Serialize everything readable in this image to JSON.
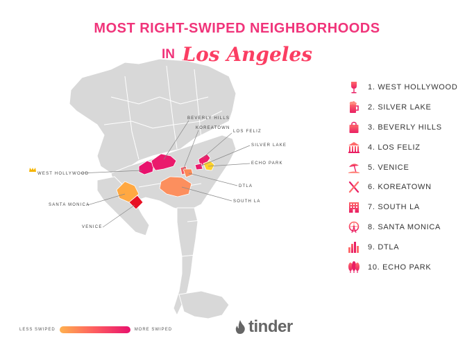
{
  "title": {
    "line1": "MOST RIGHT-SWIPED NEIGHBORHOODS",
    "line2_prefix": "IN",
    "line2_city": "Los Angeles"
  },
  "map_labels": {
    "west_hollywood": "WEST HOLLYWOOD",
    "beverly_hills": "BEVERLY HILLS",
    "koreatown": "KOREATOWN",
    "los_feliz": "LOS FELIZ",
    "silver_lake": "SILVER LAKE",
    "echo_park": "ECHO PARK",
    "dtla": "DTLA",
    "south_la": "SOUTH LA",
    "santa_monica": "SANTA MONICA",
    "venice": "VENICE"
  },
  "rankings": [
    {
      "label": "1. WEST HOLLYWOOD",
      "icon": "wine-glass-icon"
    },
    {
      "label": "2. SILVER LAKE",
      "icon": "beer-mug-icon"
    },
    {
      "label": "3. BEVERLY HILLS",
      "icon": "shopping-bag-icon"
    },
    {
      "label": "4. LOS FELIZ",
      "icon": "observatory-icon"
    },
    {
      "label": "5. VENICE",
      "icon": "beach-umbrella-icon"
    },
    {
      "label": "6. KOREATOWN",
      "icon": "fork-knife-icon"
    },
    {
      "label": "7. SOUTH LA",
      "icon": "building-icon"
    },
    {
      "label": "8. SANTA MONICA",
      "icon": "ferris-wheel-icon"
    },
    {
      "label": "9. DTLA",
      "icon": "skyline-icon"
    },
    {
      "label": "10. ECHO PARK",
      "icon": "trees-icon"
    }
  ],
  "legend": {
    "low": "LESS SWIPED",
    "high": "MORE SWIPED",
    "low_color": "#ffb14e",
    "high_color": "#e8126d"
  },
  "brand": {
    "name": "tinder",
    "icon": "flame-icon"
  },
  "colors": {
    "title": "#f0347a",
    "city": "#fb3e63",
    "map_base": "#d8d8d8",
    "map_border": "#ffffff",
    "icon_gradient_top": "#ff6b6b",
    "icon_gradient_bottom": "#e91e63"
  }
}
